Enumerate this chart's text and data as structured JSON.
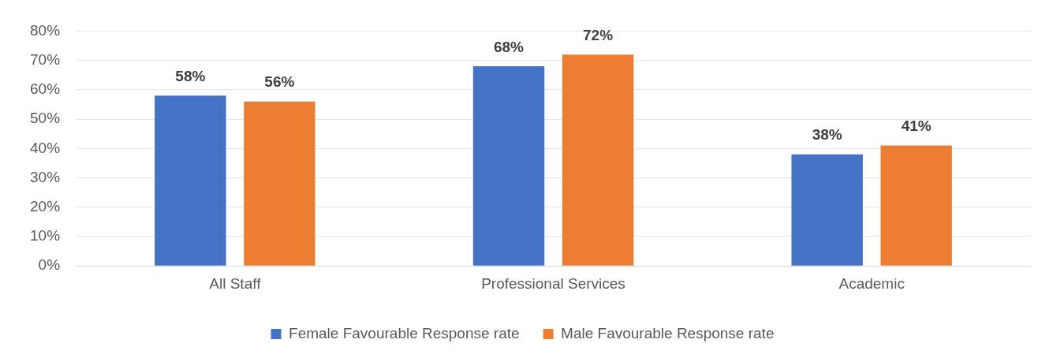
{
  "chart_data": {
    "type": "bar",
    "categories": [
      "All Staff",
      "Professional Services",
      "Academic"
    ],
    "series": [
      {
        "name": "Female Favourable Response rate",
        "color": "#4472c4",
        "values": [
          58,
          68,
          38
        ]
      },
      {
        "name": "Male Favourable Response rate",
        "color": "#ed7d31",
        "values": [
          56,
          72,
          41
        ]
      }
    ],
    "ylim": [
      0,
      80
    ],
    "yticks": [
      {
        "value": 0,
        "label": "0%"
      },
      {
        "value": 10,
        "label": "10%"
      },
      {
        "value": 20,
        "label": "20%"
      },
      {
        "value": 30,
        "label": "30%"
      },
      {
        "value": 40,
        "label": "40%"
      },
      {
        "value": 50,
        "label": "50%"
      },
      {
        "value": 60,
        "label": "60%"
      },
      {
        "value": 70,
        "label": "70%"
      },
      {
        "value": 80,
        "label": "80%"
      }
    ],
    "value_labels": [
      [
        "58%",
        "68%",
        "38%"
      ],
      [
        "56%",
        "72%",
        "41%"
      ]
    ],
    "grid": "y",
    "legend": "bottom"
  }
}
